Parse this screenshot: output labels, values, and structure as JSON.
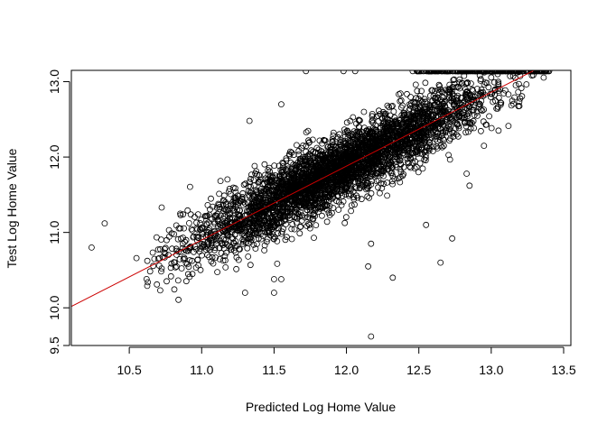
{
  "chart_data": {
    "type": "scatter",
    "title": "",
    "xlabel": "Predicted Log Home Value",
    "ylabel": "Test Log Home Value",
    "xlim": [
      10.1,
      13.55
    ],
    "ylim": [
      9.5,
      13.15
    ],
    "x_ticks": [
      10.5,
      11.0,
      11.5,
      12.0,
      12.5,
      13.0,
      13.5
    ],
    "x_tick_labels": [
      "10.5",
      "11.0",
      "11.5",
      "12.0",
      "12.5",
      "13.0",
      "13.5"
    ],
    "y_ticks": [
      9.5,
      10.0,
      11.0,
      12.0,
      13.0
    ],
    "y_tick_labels": [
      "9.5",
      "10.0",
      "11.0",
      "12.0",
      "13.0"
    ],
    "grid": false,
    "legend": "none",
    "marker": "open-circle",
    "marker_color": "#000000",
    "fit_line": {
      "intercept": 0.12,
      "slope": 0.98,
      "color": "#cc0000"
    },
    "cap_value": 13.14,
    "outliers": {
      "x": [
        10.24,
        10.33,
        10.55,
        11.3,
        11.5,
        11.5,
        11.55,
        11.33,
        11.55,
        11.72,
        11.98,
        12.06,
        12.15,
        12.17,
        12.32,
        12.65,
        12.73,
        12.85,
        12.55,
        12.17,
        12.83,
        12.95,
        13.05
      ],
      "y": [
        10.8,
        11.12,
        10.66,
        10.2,
        10.2,
        10.38,
        10.38,
        12.48,
        12.7,
        13.14,
        13.14,
        13.14,
        10.55,
        9.62,
        10.4,
        10.6,
        10.92,
        11.62,
        11.1,
        10.85,
        11.78,
        12.15,
        12.35
      ]
    },
    "main_cloud": {
      "description_points": 3800,
      "x_center": 11.95,
      "x_sd": 0.52,
      "x_range": [
        10.6,
        13.4
      ],
      "slope": 0.98,
      "intercept": 0.12,
      "residual_sd": 0.22
    }
  }
}
